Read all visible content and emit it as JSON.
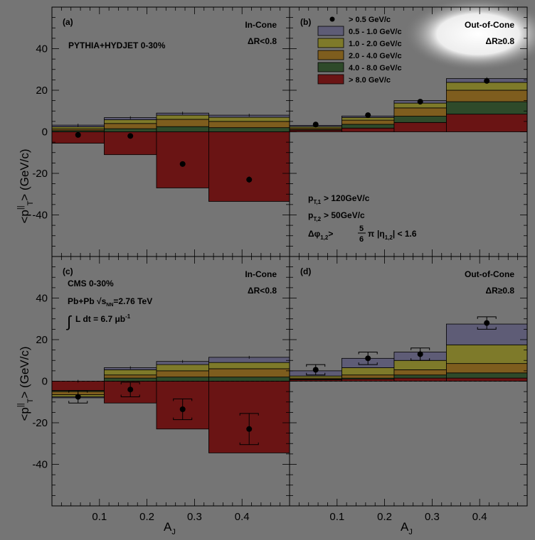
{
  "colors": {
    "background": "#757575",
    "bins": [
      "#5e5c76",
      "#7e7a2a",
      "#7e5d1e",
      "#2e4a2a",
      "#6a1414"
    ],
    "points": "#000000"
  },
  "axes": {
    "ylabel_main": "<p",
    "ylabel_sup": "||",
    "ylabel_sub": "T",
    "ylabel_tail": "> (GeV/c)",
    "xlabel_main": "A",
    "xlabel_sub": "J",
    "yticks": [
      "40",
      "20",
      "0",
      "-20",
      "-40"
    ],
    "xticks": [
      "0.1",
      "0.2",
      "0.3",
      "0.4"
    ]
  },
  "legend": {
    "point_label": "> 0.5 GeV/c",
    "bin_labels": [
      "0.5 - 1.0 GeV/c",
      "1.0 - 2.0 GeV/c",
      "2.0 - 4.0 GeV/c",
      "4.0 - 8.0 GeV/c",
      "> 8.0 GeV/c"
    ]
  },
  "cuts": {
    "pt1_main": "p",
    "pt1_sub": "T,1",
    "pt1_val": "> 120GeV/c",
    "pt2_main": "p",
    "pt2_sub": "T,2",
    "pt2_val": "> 50GeV/c",
    "dphi_main": "Δφ",
    "dphi_sub": "1,2",
    "dphi_gt": ">",
    "frac_num": "5",
    "frac_den": "6",
    "pi": "π",
    "eta_pre": "|η",
    "eta_sub": "1,2",
    "eta_post": "| < 1.6"
  },
  "cms": {
    "label": "CMS 0-30%",
    "pbpb_pre": "Pb+Pb √s",
    "pbpb_sub": "NN",
    "pbpb_post": "=2.76 TeV",
    "lumi_int": "∫",
    "lumi_main": "L dt = 6.7 μb",
    "lumi_sup": "-1"
  },
  "chart_data": [
    {
      "type": "bar",
      "stacked": true,
      "panel_label": "(a)",
      "title": "PYTHIA+HYDJET 0-30%",
      "region": "In-Cone",
      "cut": "ΔR<0.8",
      "xlabel": "",
      "ylabel": "<p_T^||> (GeV/c)",
      "x_edges": [
        0,
        0.11,
        0.22,
        0.33,
        0.5
      ],
      "xlim": [
        0,
        0.5
      ],
      "ylim": [
        -60,
        60
      ],
      "series": [
        {
          "name": "0.5 - 1.0 GeV/c",
          "values": [
            0.8,
            1.0,
            1.0,
            1.0
          ]
        },
        {
          "name": "1.0 - 2.0 GeV/c",
          "values": [
            1.0,
            1.8,
            2.0,
            2.0
          ]
        },
        {
          "name": "2.0 - 4.0 GeV/c",
          "values": [
            0.8,
            2.5,
            3.5,
            3.0
          ]
        },
        {
          "name": "4.0 - 8.0 GeV/c",
          "values": [
            0.6,
            1.5,
            2.5,
            2.0
          ]
        },
        {
          "name": "> 8.0 GeV/c",
          "values": [
            -5.5,
            -11,
            -27,
            -33.5
          ]
        }
      ],
      "points": {
        "x": [
          0.055,
          0.165,
          0.275,
          0.415
        ],
        "y": [
          -1.5,
          -2,
          -15.5,
          -23
        ],
        "err": [
          0.8,
          0.8,
          1.0,
          1.5
        ]
      }
    },
    {
      "type": "bar",
      "stacked": true,
      "panel_label": "(b)",
      "title": "",
      "region": "Out-of-Cone",
      "cut": "ΔR≥0.8",
      "xlabel": "",
      "ylabel": "",
      "x_edges": [
        0,
        0.11,
        0.22,
        0.33,
        0.5
      ],
      "xlim": [
        0,
        0.5
      ],
      "ylim": [
        -60,
        60
      ],
      "series": [
        {
          "name": "0.5 - 1.0 GeV/c",
          "values": [
            0.6,
            0.7,
            1.2,
            1.8
          ]
        },
        {
          "name": "1.0 - 2.0 GeV/c",
          "values": [
            0.7,
            1.3,
            2.3,
            3.8
          ]
        },
        {
          "name": "2.0 - 4.0 GeV/c",
          "values": [
            0.7,
            2.0,
            4.0,
            5.5
          ]
        },
        {
          "name": "4.0 - 8.0 GeV/c",
          "values": [
            0.3,
            1.8,
            3.0,
            6.0
          ]
        },
        {
          "name": "> 8.0 GeV/c",
          "values": [
            0.8,
            1.8,
            4.5,
            8.5
          ]
        }
      ],
      "points": {
        "x": [
          0.055,
          0.165,
          0.275,
          0.415
        ],
        "y": [
          3.5,
          8,
          14.5,
          24.5
        ],
        "err": [
          0.6,
          0.6,
          0.8,
          1.0
        ]
      }
    },
    {
      "type": "bar",
      "stacked": true,
      "panel_label": "(c)",
      "title": "",
      "region": "In-Cone",
      "cut": "ΔR<0.8",
      "xlabel": "A_J",
      "ylabel": "<p_T^||> (GeV/c)",
      "x_edges": [
        0,
        0.11,
        0.22,
        0.33,
        0.5
      ],
      "xlim": [
        0,
        0.5
      ],
      "ylim": [
        -60,
        60
      ],
      "series": [
        {
          "name": "0.5 - 1.0 GeV/c",
          "values": [
            -0.5,
            1.0,
            1.5,
            2.5
          ]
        },
        {
          "name": "1.0 - 2.0 GeV/c",
          "values": [
            -1.0,
            2.5,
            3.0,
            3.0
          ]
        },
        {
          "name": "2.0 - 4.0 GeV/c",
          "values": [
            -1.5,
            1.5,
            3.0,
            4.0
          ]
        },
        {
          "name": "4.0 - 8.0 GeV/c",
          "values": [
            -0.5,
            1.5,
            2.0,
            2.0
          ]
        },
        {
          "name": "> 8.0 GeV/c",
          "values": [
            -4.5,
            -10.5,
            -23,
            -34.5
          ]
        }
      ],
      "points": {
        "x": [
          0.055,
          0.165,
          0.275,
          0.415
        ],
        "y": [
          -7.5,
          -4,
          -13.5,
          -23
        ],
        "err": [
          3.0,
          3.5,
          5.0,
          7.5
        ]
      }
    },
    {
      "type": "bar",
      "stacked": true,
      "panel_label": "(d)",
      "title": "",
      "region": "Out-of-Cone",
      "cut": "ΔR≥0.8",
      "xlabel": "A_J",
      "ylabel": "",
      "x_edges": [
        0,
        0.11,
        0.22,
        0.33,
        0.5
      ],
      "xlim": [
        0,
        0.5
      ],
      "ylim": [
        -60,
        60
      ],
      "series": [
        {
          "name": "0.5 - 1.0 GeV/c",
          "values": [
            2.5,
            4.5,
            4.0,
            10.0
          ]
        },
        {
          "name": "1.0 - 2.0 GeV/c",
          "values": [
            1.0,
            3.5,
            4.5,
            9.0
          ]
        },
        {
          "name": "2.0 - 4.0 GeV/c",
          "values": [
            0.5,
            1.5,
            2.5,
            4.5
          ]
        },
        {
          "name": "4.0 - 8.0 GeV/c",
          "values": [
            0.3,
            0.5,
            1.5,
            2.5
          ]
        },
        {
          "name": "> 8.0 GeV/c",
          "values": [
            0.7,
            1.0,
            1.5,
            1.5
          ]
        }
      ],
      "points": {
        "x": [
          0.055,
          0.165,
          0.275,
          0.415
        ],
        "y": [
          5.5,
          11,
          13,
          28
        ],
        "err": [
          2.5,
          3.0,
          3.0,
          3.0
        ]
      }
    }
  ]
}
